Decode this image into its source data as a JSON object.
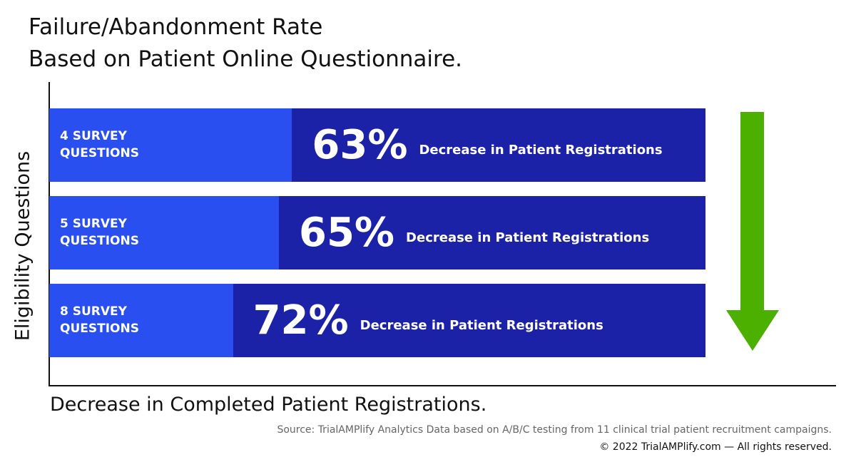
{
  "chart_data": {
    "type": "bar",
    "title": "Failure/Abandonment Rate",
    "subtitle": "Based on Patient Online Questionnaire.",
    "y_label": "Eligibility Questions",
    "x_label": "Decrease in Completed Patient Registrations.",
    "annotation": "Decrease in Patient Registrations",
    "categories": [
      "4 SURVEY QUESTIONS",
      "5 SURVEY QUESTIONS",
      "8 SURVEY QUESTIONS"
    ],
    "values": [
      63,
      65,
      72
    ],
    "value_labels": [
      "63%",
      "65%",
      "72%"
    ],
    "color": "#1c22a8",
    "track_color": "#2a4ff0",
    "xlim": [
      0,
      100
    ],
    "arrow_color": "#4cb000",
    "source": "Source: TrialAMPlify Analytics Data based on A/B/C testing from 11 clinical trial patient recruitment campaigns.",
    "copyright": "© 2022 TrialAMPlify.com — All rights reserved."
  }
}
